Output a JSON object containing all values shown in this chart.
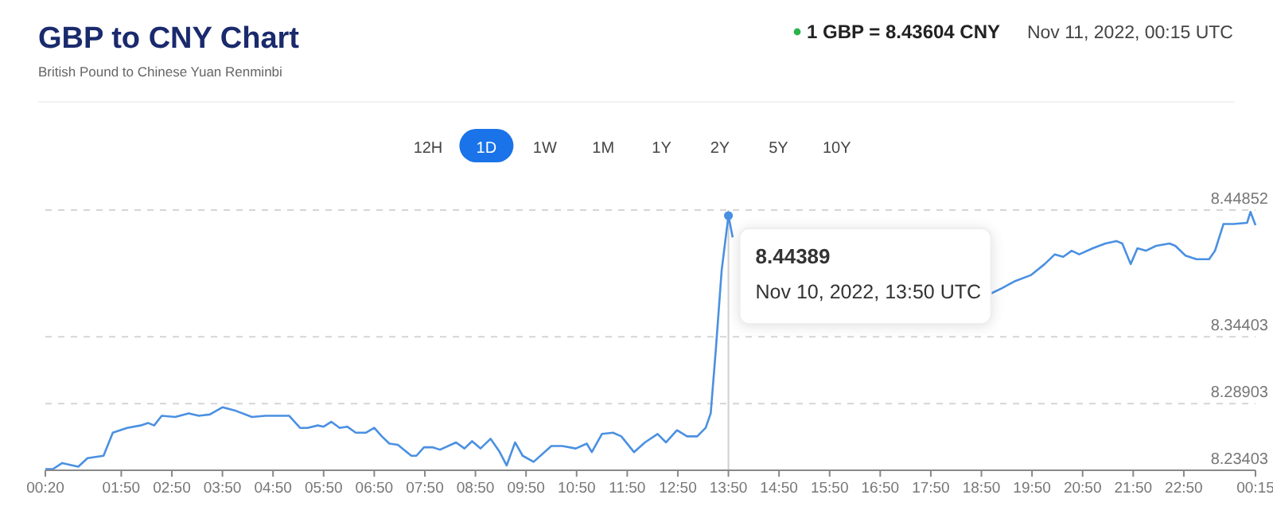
{
  "chart_data": {
    "type": "line",
    "title": "GBP to CNY Chart",
    "subtitle": "British Pound to Chinese Yuan Renminbi",
    "annotations": [
      "1 GBP = 8.43604 CNY",
      "Nov 11, 2022, 00:15 UTC",
      "12H",
      "1D",
      "1W",
      "1M",
      "1Y",
      "2Y",
      "5Y",
      "10Y",
      {
        "text": "8.44389",
        "x": "2022-11-10T13:50",
        "y": 8.44389
      },
      "Nov 10, 2022, 13:50 UTC"
    ],
    "series": [
      {
        "color": "#4a90e2",
        "x": [
          "2022-11-10T00:20",
          "2022-11-10T00:29",
          "2022-11-10T00:40",
          "2022-11-10T00:59",
          "2022-11-10T01:10",
          "2022-11-10T01:29",
          "2022-11-10T01:40",
          "2022-11-10T01:57",
          "2022-11-10T02:13",
          "2022-11-10T02:22",
          "2022-11-10T02:29",
          "2022-11-10T02:38",
          "2022-11-10T02:54",
          "2022-11-10T03:10",
          "2022-11-10T03:22",
          "2022-11-10T03:35",
          "2022-11-10T03:50",
          "2022-11-10T04:06",
          "2022-11-10T04:25",
          "2022-11-10T04:41",
          "2022-11-10T05:09",
          "2022-11-10T05:22",
          "2022-11-10T05:31",
          "2022-11-10T05:43",
          "2022-11-10T05:50",
          "2022-11-10T05:59",
          "2022-11-10T06:09",
          "2022-11-10T06:18",
          "2022-11-10T06:28",
          "2022-11-10T06:40",
          "2022-11-10T06:50",
          "2022-11-10T06:59",
          "2022-11-10T07:08",
          "2022-11-10T07:18",
          "2022-11-10T07:34",
          "2022-11-10T07:40",
          "2022-11-10T07:49",
          "2022-11-10T07:59",
          "2022-11-10T08:08",
          "2022-11-10T08:27",
          "2022-11-10T08:37",
          "2022-11-10T08:46",
          "2022-11-10T08:56",
          "2022-11-10T09:08",
          "2022-11-10T09:18",
          "2022-11-10T09:27",
          "2022-11-10T09:37",
          "2022-11-10T09:46",
          "2022-11-10T09:59",
          "2022-11-10T10:20",
          "2022-11-10T10:33",
          "2022-11-10T10:49",
          "2022-11-10T11:02",
          "2022-11-10T11:08",
          "2022-11-10T11:20",
          "2022-11-10T11:33",
          "2022-11-10T11:43",
          "2022-11-10T11:58",
          "2022-11-10T12:11",
          "2022-11-10T12:26",
          "2022-11-10T12:36",
          "2022-11-10T12:49",
          "2022-11-10T13:01",
          "2022-11-10T13:13",
          "2022-11-10T13:23",
          "2022-11-10T13:29",
          "2022-11-10T13:35",
          "2022-11-10T13:42",
          "2022-11-10T13:50",
          "2022-11-10T13:55",
          "2022-11-10T14:04",
          "2022-11-10T16:00",
          "2022-11-10T18:59",
          "2022-11-10T19:14",
          "2022-11-10T19:30",
          "2022-11-10T19:49",
          "2022-11-10T20:05",
          "2022-11-10T20:17",
          "2022-11-10T20:27",
          "2022-11-10T20:37",
          "2022-11-10T20:46",
          "2022-11-10T21:02",
          "2022-11-10T21:17",
          "2022-11-10T21:30",
          "2022-11-10T21:37",
          "2022-11-10T21:47",
          "2022-11-10T21:55",
          "2022-11-10T22:05",
          "2022-11-10T22:17",
          "2022-11-10T22:33",
          "2022-11-10T22:40",
          "2022-11-10T22:52",
          "2022-11-10T23:05",
          "2022-11-10T23:20",
          "2022-11-10T23:27",
          "2022-11-10T23:37",
          "2022-11-10T23:49",
          "2022-11-11T00:05",
          "2022-11-11T00:09",
          "2022-11-11T00:15"
        ],
        "values": [
          8.235,
          8.235,
          8.24,
          8.237,
          8.244,
          8.246,
          8.265,
          8.269,
          8.271,
          8.273,
          8.271,
          8.279,
          8.278,
          8.281,
          8.279,
          8.28,
          8.286,
          8.283,
          8.278,
          8.279,
          8.279,
          8.269,
          8.269,
          8.271,
          8.27,
          8.274,
          8.269,
          8.27,
          8.265,
          8.265,
          8.269,
          8.262,
          8.256,
          8.255,
          8.246,
          8.246,
          8.253,
          8.253,
          8.251,
          8.257,
          8.252,
          8.258,
          8.252,
          8.26,
          8.25,
          8.238,
          8.257,
          8.246,
          8.241,
          8.254,
          8.254,
          8.252,
          8.256,
          8.249,
          8.264,
          8.265,
          8.262,
          8.249,
          8.257,
          8.264,
          8.257,
          8.267,
          8.262,
          8.262,
          8.269,
          8.281,
          8.333,
          8.399,
          8.44389,
          8.426,
          null,
          null,
          8.379,
          8.384,
          8.39,
          8.395,
          8.404,
          8.412,
          8.41,
          8.415,
          8.412,
          8.417,
          8.421,
          8.423,
          8.421,
          8.404,
          8.417,
          8.415,
          8.419,
          8.421,
          8.419,
          8.411,
          8.408,
          8.408,
          8.415,
          8.437,
          8.437,
          8.438,
          8.447,
          8.43604
        ]
      }
    ],
    "xlim": [
      "2022-11-10T00:20",
      "2022-11-11T00:15"
    ],
    "xticks": [
      {
        "value": "2022-11-10T00:20",
        "label": "00:20"
      },
      {
        "value": "2022-11-10T01:50",
        "label": "01:50"
      },
      {
        "value": "2022-11-10T02:50",
        "label": "02:50"
      },
      {
        "value": "2022-11-10T03:50",
        "label": "03:50"
      },
      {
        "value": "2022-11-10T04:50",
        "label": "04:50"
      },
      {
        "value": "2022-11-10T05:50",
        "label": "05:50"
      },
      {
        "value": "2022-11-10T06:50",
        "label": "06:50"
      },
      {
        "value": "2022-11-10T07:50",
        "label": "07:50"
      },
      {
        "value": "2022-11-10T08:50",
        "label": "08:50"
      },
      {
        "value": "2022-11-10T09:50",
        "label": "09:50"
      },
      {
        "value": "2022-11-10T10:50",
        "label": "10:50"
      },
      {
        "value": "2022-11-10T11:50",
        "label": "11:50"
      },
      {
        "value": "2022-11-10T12:50",
        "label": "12:50"
      },
      {
        "value": "2022-11-10T13:50",
        "label": "13:50"
      },
      {
        "value": "2022-11-10T14:50",
        "label": "14:50"
      },
      {
        "value": "2022-11-10T15:50",
        "label": "15:50"
      },
      {
        "value": "2022-11-10T16:50",
        "label": "16:50"
      },
      {
        "value": "2022-11-10T17:50",
        "label": "17:50"
      },
      {
        "value": "2022-11-10T18:50",
        "label": "18:50"
      },
      {
        "value": "2022-11-10T19:50",
        "label": "19:50"
      },
      {
        "value": "2022-11-10T20:50",
        "label": "20:50"
      },
      {
        "value": "2022-11-10T21:50",
        "label": "21:50"
      },
      {
        "value": "2022-11-10T22:50",
        "label": "22:50"
      },
      {
        "value": "2022-11-11T00:15",
        "label": "00:15"
      }
    ],
    "ylim": [
      8.23403,
      8.44852
    ],
    "yticks": [
      8.23403,
      8.28903,
      8.34403,
      8.44852
    ],
    "grid": "y",
    "marker": "none",
    "line_style": "solid",
    "ref_lines": [
      {
        "axis": "x",
        "value": "2022-11-10T13:50",
        "label": null,
        "color": "#d0d0d0"
      }
    ]
  }
}
